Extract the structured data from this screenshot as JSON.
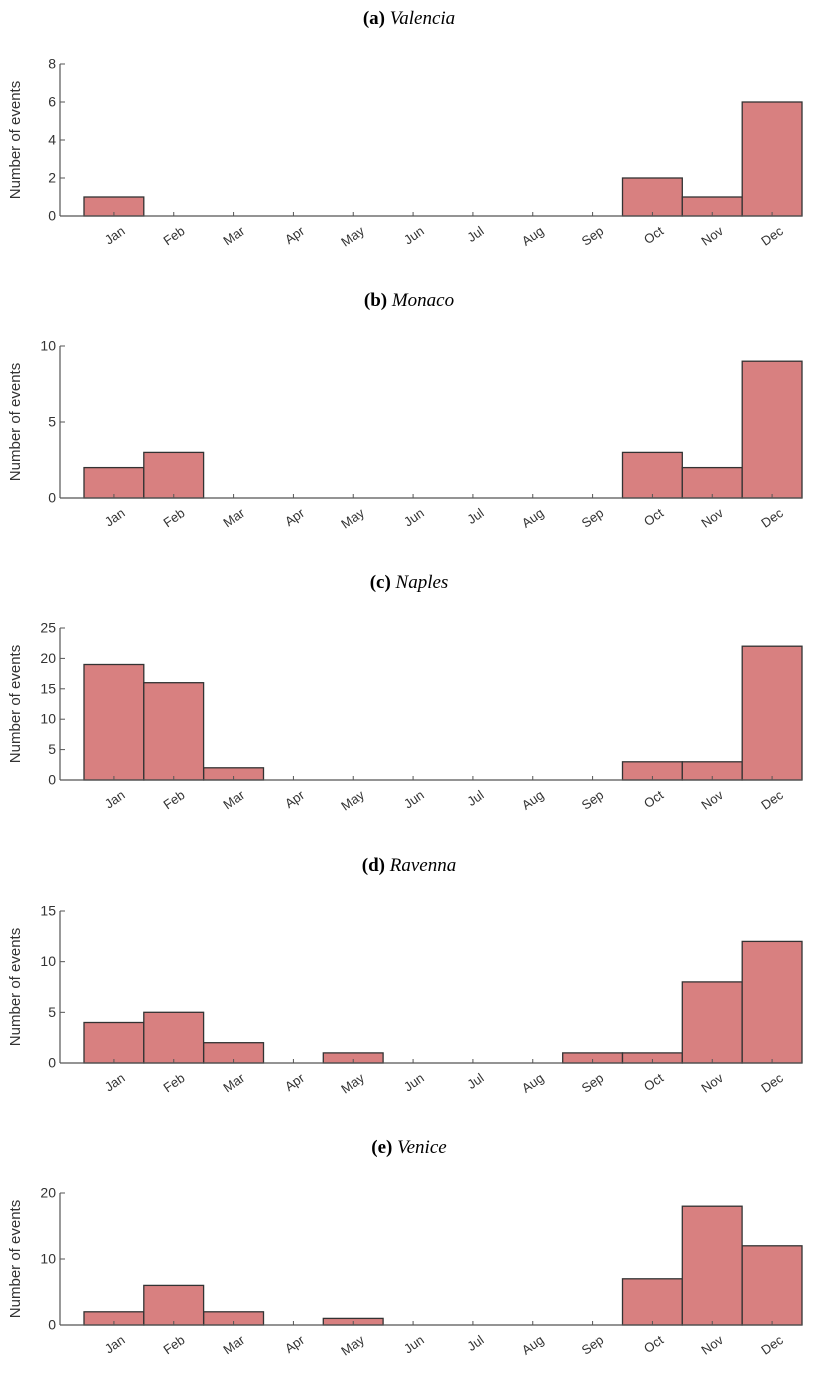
{
  "colors": {
    "bar_fill": "#d88080",
    "bar_stroke": "#333333",
    "axis": "#555555",
    "text": "#333333"
  },
  "chart_data": [
    {
      "type": "bar",
      "panel_label": "(a)",
      "title": "Valencia",
      "categories": [
        "Jan",
        "Feb",
        "Mar",
        "Apr",
        "May",
        "Jun",
        "Jul",
        "Aug",
        "Sep",
        "Oct",
        "Nov",
        "Dec"
      ],
      "values": [
        1,
        0,
        0,
        0,
        0,
        0,
        0,
        0,
        0,
        2,
        1,
        6
      ],
      "ylabel": "Number of events",
      "ylim": [
        0,
        8
      ],
      "yticks": [
        0,
        2,
        4,
        6,
        8
      ],
      "grid": false
    },
    {
      "type": "bar",
      "panel_label": "(b)",
      "title": "Monaco",
      "categories": [
        "Jan",
        "Feb",
        "Mar",
        "Apr",
        "May",
        "Jun",
        "Jul",
        "Aug",
        "Sep",
        "Oct",
        "Nov",
        "Dec"
      ],
      "values": [
        2,
        3,
        0,
        0,
        0,
        0,
        0,
        0,
        0,
        3,
        2,
        9
      ],
      "ylabel": "Number of events",
      "ylim": [
        0,
        10
      ],
      "yticks": [
        0,
        5,
        10
      ],
      "grid": false
    },
    {
      "type": "bar",
      "panel_label": "(c)",
      "title": "Naples",
      "categories": [
        "Jan",
        "Feb",
        "Mar",
        "Apr",
        "May",
        "Jun",
        "Jul",
        "Aug",
        "Sep",
        "Oct",
        "Nov",
        "Dec"
      ],
      "values": [
        19,
        16,
        2,
        0,
        0,
        0,
        0,
        0,
        0,
        3,
        3,
        22
      ],
      "ylabel": "Number of events",
      "ylim": [
        0,
        25
      ],
      "yticks": [
        0,
        5,
        10,
        15,
        20,
        25
      ],
      "grid": false
    },
    {
      "type": "bar",
      "panel_label": "(d)",
      "title": "Ravenna",
      "categories": [
        "Jan",
        "Feb",
        "Mar",
        "Apr",
        "May",
        "Jun",
        "Jul",
        "Aug",
        "Sep",
        "Oct",
        "Nov",
        "Dec"
      ],
      "values": [
        4,
        5,
        2,
        0,
        1,
        0,
        0,
        0,
        1,
        1,
        8,
        12
      ],
      "ylabel": "Number of events",
      "ylim": [
        0,
        15
      ],
      "yticks": [
        0,
        5,
        10,
        15
      ],
      "grid": false
    },
    {
      "type": "bar",
      "panel_label": "(e)",
      "title": "Venice",
      "categories": [
        "Jan",
        "Feb",
        "Mar",
        "Apr",
        "May",
        "Jun",
        "Jul",
        "Aug",
        "Sep",
        "Oct",
        "Nov",
        "Dec"
      ],
      "values": [
        2,
        6,
        2,
        0,
        1,
        0,
        0,
        0,
        0,
        7,
        18,
        12
      ],
      "ylabel": "Number of events",
      "ylim": [
        0,
        20
      ],
      "yticks": [
        0,
        10,
        20
      ],
      "grid": false
    }
  ]
}
